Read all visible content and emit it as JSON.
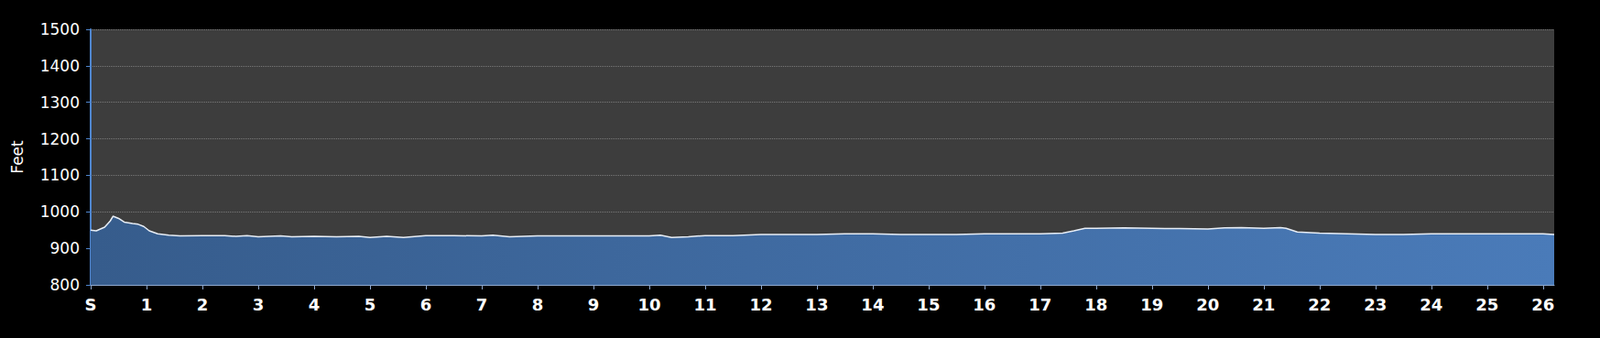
{
  "chart_data": {
    "type": "area",
    "y_label": "Feet",
    "x": [
      0,
      0.1,
      0.25,
      0.35,
      0.4,
      0.5,
      0.6,
      0.75,
      0.85,
      0.95,
      1.05,
      1.2,
      1.4,
      1.6,
      2.0,
      2.4,
      2.6,
      2.8,
      3.0,
      3.4,
      3.6,
      4.0,
      4.4,
      4.8,
      5.0,
      5.3,
      5.6,
      6.0,
      6.5,
      7.0,
      7.2,
      7.5,
      8.0,
      8.5,
      9.0,
      9.5,
      10.0,
      10.2,
      10.4,
      10.7,
      11.0,
      11.5,
      12.0,
      12.5,
      13.0,
      13.5,
      14.0,
      14.5,
      15.0,
      15.5,
      16.0,
      16.5,
      17.0,
      17.4,
      17.6,
      17.8,
      18.0,
      18.5,
      19.0,
      19.5,
      20.0,
      20.3,
      20.6,
      21.0,
      21.3,
      21.4,
      21.6,
      22.0,
      22.5,
      23.0,
      23.5,
      24.0,
      24.5,
      25.0,
      25.5,
      26.0,
      26.2
    ],
    "values": [
      950,
      948,
      958,
      975,
      988,
      982,
      972,
      968,
      966,
      960,
      948,
      940,
      936,
      934,
      935,
      935,
      933,
      935,
      932,
      934,
      932,
      933,
      932,
      933,
      930,
      933,
      930,
      935,
      935,
      934,
      936,
      932,
      934,
      934,
      934,
      934,
      934,
      936,
      930,
      932,
      935,
      935,
      938,
      938,
      938,
      940,
      940,
      938,
      938,
      938,
      940,
      940,
      940,
      942,
      948,
      955,
      955,
      956,
      955,
      954,
      953,
      956,
      957,
      955,
      957,
      955,
      945,
      942,
      940,
      938,
      938,
      940,
      940,
      940,
      940,
      940,
      938
    ],
    "color": "#4a7bb9",
    "xlim": [
      0,
      26.2
    ],
    "xticks": [
      {
        "value": 0,
        "label": "S"
      },
      1,
      2,
      3,
      4,
      5,
      6,
      7,
      8,
      9,
      10,
      11,
      12,
      13,
      14,
      15,
      16,
      17,
      18,
      19,
      20,
      21,
      22,
      23,
      24,
      25,
      26
    ],
    "ylim": [
      800,
      1500
    ],
    "yticks": [
      800,
      900,
      1000,
      1100,
      1200,
      1300,
      1400,
      1500
    ],
    "grid": true
  }
}
